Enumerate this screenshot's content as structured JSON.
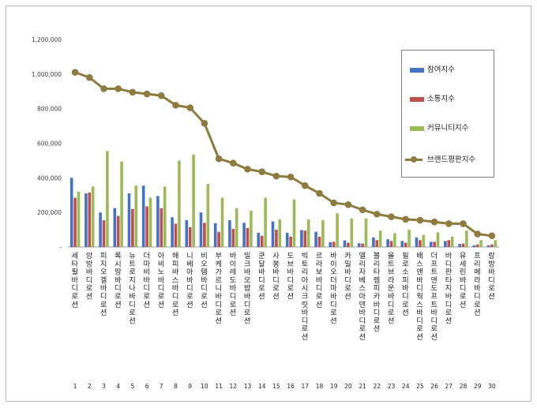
{
  "chart_data": {
    "type": "bar",
    "ylim": [
      0,
      1200000
    ],
    "yticks": [
      "-",
      "200,000",
      "400,000",
      "600,000",
      "800,000",
      "1,000,000",
      "1,200,000"
    ],
    "categories": [
      "세타필 바디로션",
      "앙방 바디로션",
      "피지오겔 바디로션",
      "록시땅 바디로션",
      "뉴트로지나 바디로션",
      "더마비 바디로션",
      "아비노 바디로션",
      "해피바스 바디로션",
      "니베아 바디로션",
      "비오템 바디로션",
      "부케가르니 바디로션",
      "바이레도 바디로션",
      "밀크바오밥 바디로션",
      "쿤달 바디로션",
      "사봉 바디로션",
      "도브 바디로션",
      "빅토리아시크릿 바디로션",
      "르라보 바디로션",
      "바이오더마 바디로션",
      "카밀 바디로션",
      "엘리자베스아덴 바디로션",
      "볼리타렘피카 바디로션",
      "올트브라운 바디로션",
      "필로소피 바디로션",
      "배스앤바디웍스 바디로션",
      "더프트앤도프트 바디로션",
      "바디판타지 바디로션",
      "유세린 바디로션",
      "프리메라 바디로션",
      "랑방 바디로션"
    ],
    "ranks": [
      "1",
      "2",
      "3",
      "4",
      "5",
      "6",
      "7",
      "8",
      "9",
      "10",
      "11",
      "12",
      "13",
      "14",
      "15",
      "16",
      "17",
      "18",
      "19",
      "20",
      "21",
      "22",
      "23",
      "24",
      "25",
      "26",
      "27",
      "28",
      "29",
      "30"
    ],
    "series": [
      {
        "name": "참여지수",
        "color": "#4472c4",
        "kind": "bar",
        "values": [
          400000,
          310000,
          200000,
          225000,
          310000,
          355000,
          295000,
          172000,
          155000,
          200000,
          138000,
          155000,
          140000,
          82000,
          148000,
          82000,
          98000,
          88000,
          28000,
          38000,
          22000,
          55000,
          45000,
          35000,
          55000,
          30000,
          35000,
          18000,
          10000,
          10000
        ]
      },
      {
        "name": "소통지수",
        "color": "#c0504d",
        "kind": "bar",
        "values": [
          285000,
          315000,
          155000,
          180000,
          220000,
          235000,
          225000,
          135000,
          115000,
          140000,
          88000,
          105000,
          110000,
          65000,
          100000,
          60000,
          95000,
          60000,
          30000,
          25000,
          20000,
          40000,
          35000,
          25000,
          40000,
          30000,
          40000,
          20000,
          15000,
          15000
        ]
      },
      {
        "name": "커뮤니티지수",
        "color": "#9bbb59",
        "kind": "bar",
        "values": [
          320000,
          350000,
          555000,
          495000,
          355000,
          285000,
          350000,
          500000,
          535000,
          365000,
          285000,
          225000,
          210000,
          285000,
          160000,
          275000,
          160000,
          155000,
          195000,
          165000,
          165000,
          95000,
          80000,
          100000,
          70000,
          85000,
          60000,
          95000,
          40000,
          40000
        ]
      },
      {
        "name": "브랜드평판지수",
        "color": "#8c7c40",
        "kind": "line",
        "values": [
          1010000,
          980000,
          915000,
          915000,
          895000,
          885000,
          875000,
          820000,
          805000,
          715000,
          510000,
          485000,
          450000,
          435000,
          410000,
          405000,
          355000,
          310000,
          255000,
          245000,
          215000,
          190000,
          175000,
          160000,
          155000,
          145000,
          135000,
          135000,
          75000,
          65000
        ]
      }
    ]
  }
}
